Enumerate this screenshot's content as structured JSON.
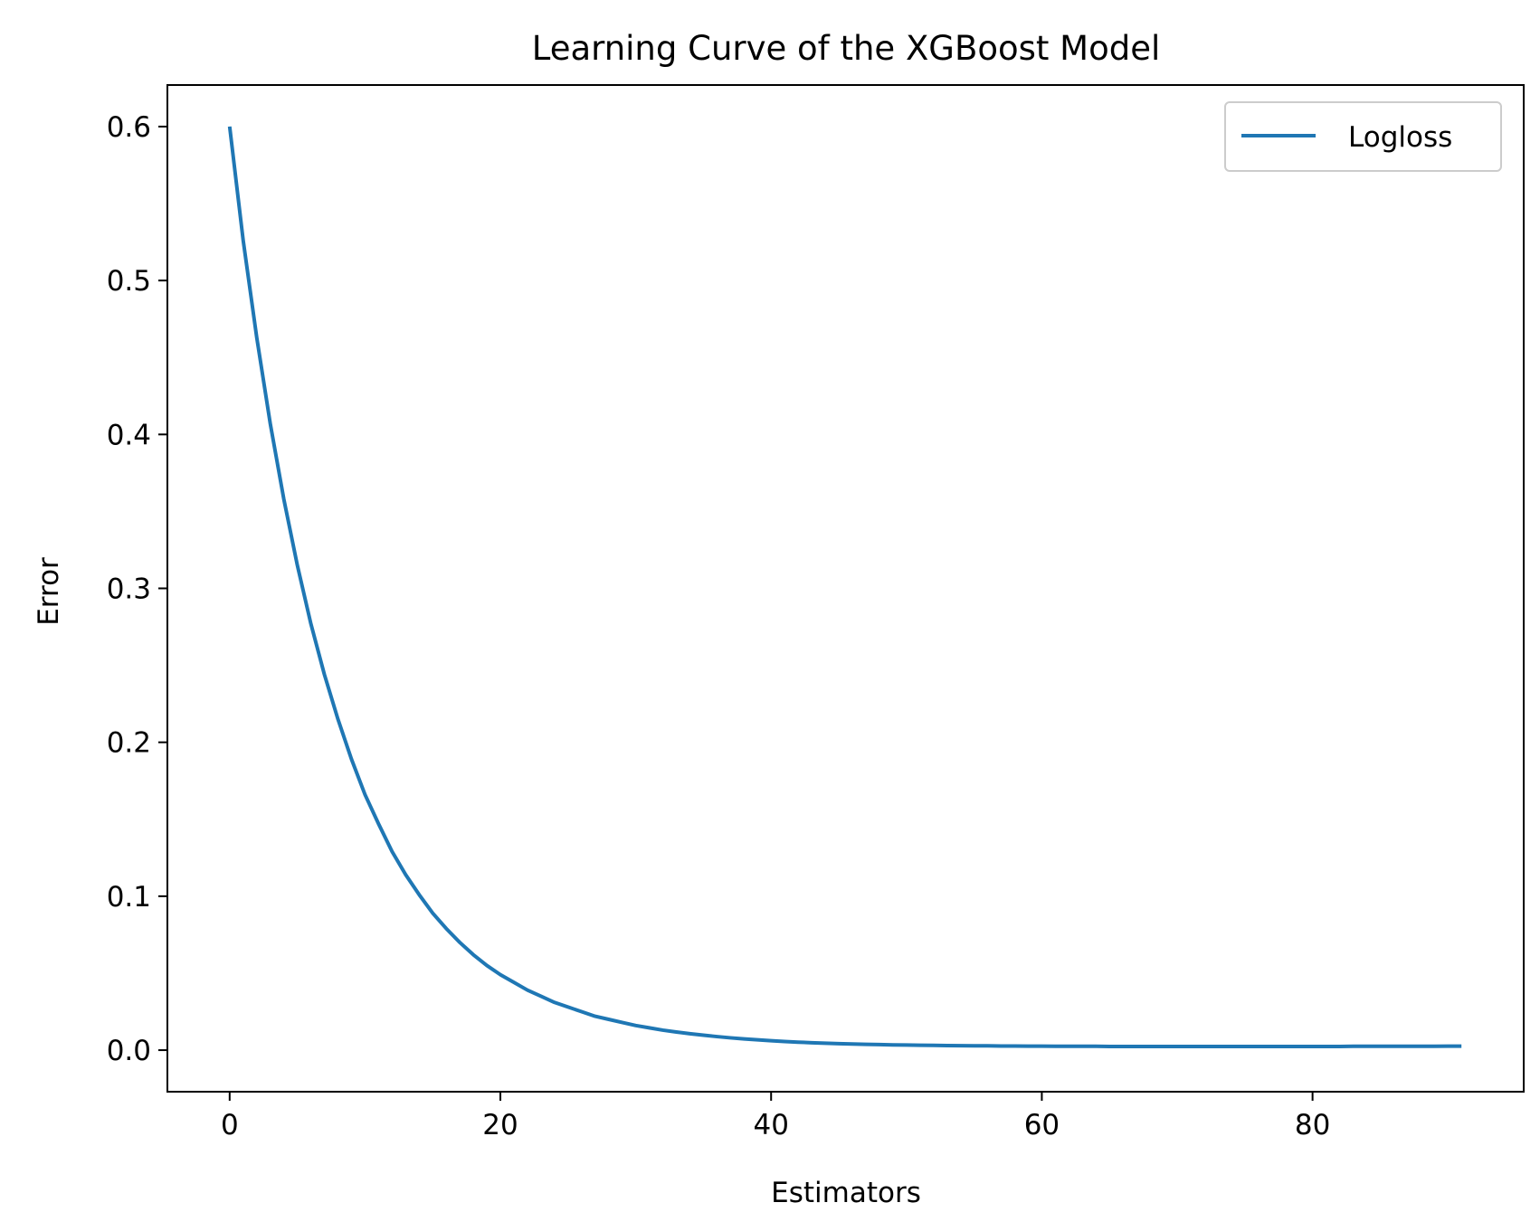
{
  "chart_data": {
    "type": "line",
    "title": "Learning Curve of the XGBoost Model",
    "xlabel": "Estimators",
    "ylabel": "Error",
    "xlim": [
      -4.6,
      95.6
    ],
    "ylim": [
      -0.027,
      0.627
    ],
    "xticks": [
      0,
      20,
      40,
      60,
      80
    ],
    "yticks": [
      0.0,
      0.1,
      0.2,
      0.3,
      0.4,
      0.5,
      0.6
    ],
    "ytick_labels": [
      "0.0",
      "0.1",
      "0.2",
      "0.3",
      "0.4",
      "0.5",
      "0.6"
    ],
    "xtick_labels": [
      "0",
      "20",
      "40",
      "60",
      "80"
    ],
    "grid": false,
    "legend_position": "top-right",
    "series": [
      {
        "name": "Logloss",
        "color": "#1f77b4",
        "x": [
          0,
          1,
          2,
          3,
          4,
          5,
          6,
          7,
          8,
          9,
          10,
          11,
          12,
          13,
          14,
          15,
          16,
          17,
          18,
          19,
          20,
          21,
          22,
          23,
          24,
          25,
          26,
          27,
          28,
          29,
          30,
          31,
          32,
          33,
          34,
          35,
          36,
          37,
          38,
          39,
          40,
          41,
          42,
          43,
          44,
          45,
          46,
          47,
          48,
          49,
          50,
          51,
          52,
          53,
          54,
          55,
          56,
          57,
          58,
          59,
          60,
          61,
          62,
          63,
          64,
          65,
          66,
          67,
          68,
          69,
          70,
          71,
          72,
          73,
          74,
          75,
          76,
          77,
          78,
          79,
          80,
          81,
          82,
          83,
          84,
          85,
          86,
          87,
          88,
          89,
          90,
          91
        ],
        "y": [
          0.6,
          0.526,
          0.463,
          0.407,
          0.358,
          0.315,
          0.277,
          0.244,
          0.215,
          0.189,
          0.166,
          0.147,
          0.129,
          0.114,
          0.101,
          0.089,
          0.079,
          0.07,
          0.062,
          0.055,
          0.049,
          0.044,
          0.039,
          0.035,
          0.031,
          0.028,
          0.025,
          0.022,
          0.02,
          0.018,
          0.016,
          0.0145,
          0.013,
          0.0118,
          0.0107,
          0.0097,
          0.0088,
          0.008,
          0.0073,
          0.0067,
          0.0061,
          0.0056,
          0.0052,
          0.0048,
          0.0045,
          0.0042,
          0.004,
          0.0038,
          0.0036,
          0.0034,
          0.0033,
          0.0032,
          0.0031,
          0.003,
          0.0029,
          0.0028,
          0.0028,
          0.0027,
          0.0027,
          0.0026,
          0.0026,
          0.0025,
          0.0025,
          0.0025,
          0.0025,
          0.0024,
          0.0024,
          0.0024,
          0.0024,
          0.0024,
          0.0024,
          0.0024,
          0.0024,
          0.0024,
          0.0024,
          0.0024,
          0.0024,
          0.0024,
          0.0024,
          0.0024,
          0.0024,
          0.0024,
          0.0024,
          0.0025,
          0.0025,
          0.0025,
          0.0025,
          0.0025,
          0.0025,
          0.0025,
          0.0026,
          0.0026
        ]
      }
    ]
  }
}
